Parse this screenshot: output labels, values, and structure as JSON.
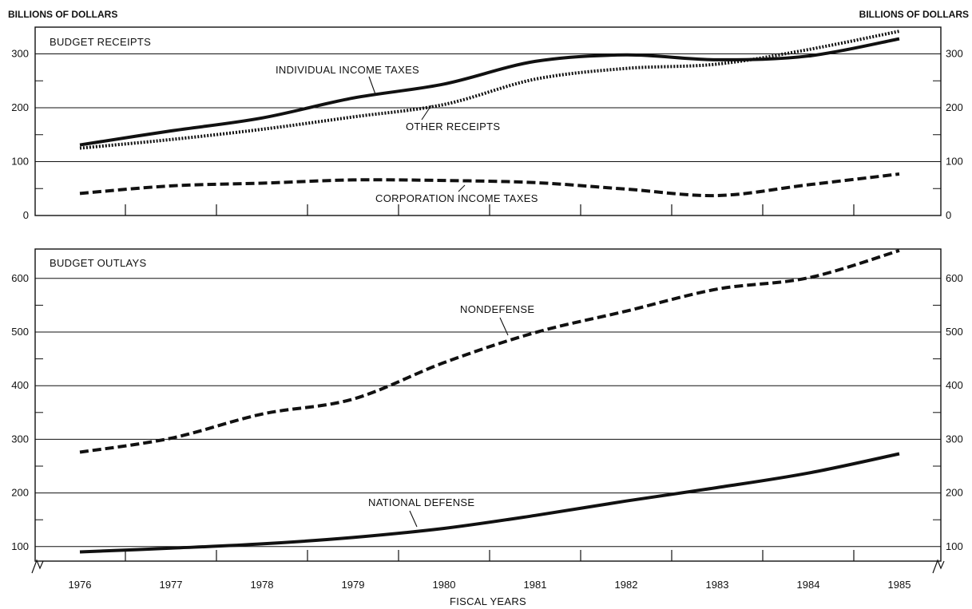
{
  "chart_data": [
    {
      "type": "line",
      "title": "BUDGET RECEIPTS",
      "ylabel_left": "BILLIONS OF DOLLARS",
      "ylabel_right": "BILLIONS OF DOLLARS",
      "ylim": [
        0,
        300
      ],
      "yticks": [
        "0",
        "100",
        "200",
        "300"
      ],
      "x": [
        1976,
        1977,
        1978,
        1979,
        1980,
        1981,
        1982,
        1983,
        1984,
        1985
      ],
      "series": [
        {
          "name": "INDIVIDUAL INCOME TAXES",
          "style": "solid",
          "values": [
            131,
            157,
            181,
            218,
            244,
            286,
            298,
            289,
            296,
            328
          ]
        },
        {
          "name": "OTHER RECEIPTS",
          "style": "dotted",
          "values": [
            125,
            141,
            160,
            183,
            206,
            253,
            273,
            281,
            308,
            342
          ]
        },
        {
          "name": "CORPORATION INCOME TAXES",
          "style": "dashed",
          "values": [
            41,
            55,
            60,
            66,
            65,
            61,
            49,
            37,
            57,
            77
          ]
        }
      ],
      "grid": true
    },
    {
      "type": "line",
      "title": "BUDGET OUTLAYS",
      "ylim": [
        50,
        650
      ],
      "yticks": [
        "100",
        "200",
        "300",
        "400",
        "500",
        "600"
      ],
      "x": [
        1976,
        1977,
        1978,
        1979,
        1980,
        1981,
        1982,
        1983,
        1984,
        1985
      ],
      "xlabel": "FISCAL YEARS",
      "series": [
        {
          "name": "NONDEFENSE",
          "style": "dashed",
          "values": [
            276,
            302,
            347,
            375,
            443,
            499,
            539,
            580,
            601,
            652
          ]
        },
        {
          "name": "NATIONAL DEFENSE",
          "style": "solid",
          "values": [
            90,
            97,
            105,
            117,
            134,
            158,
            185,
            210,
            237,
            273
          ]
        }
      ],
      "grid": true
    }
  ],
  "colors": {
    "ink": "#111111",
    "background": "#ffffff"
  }
}
